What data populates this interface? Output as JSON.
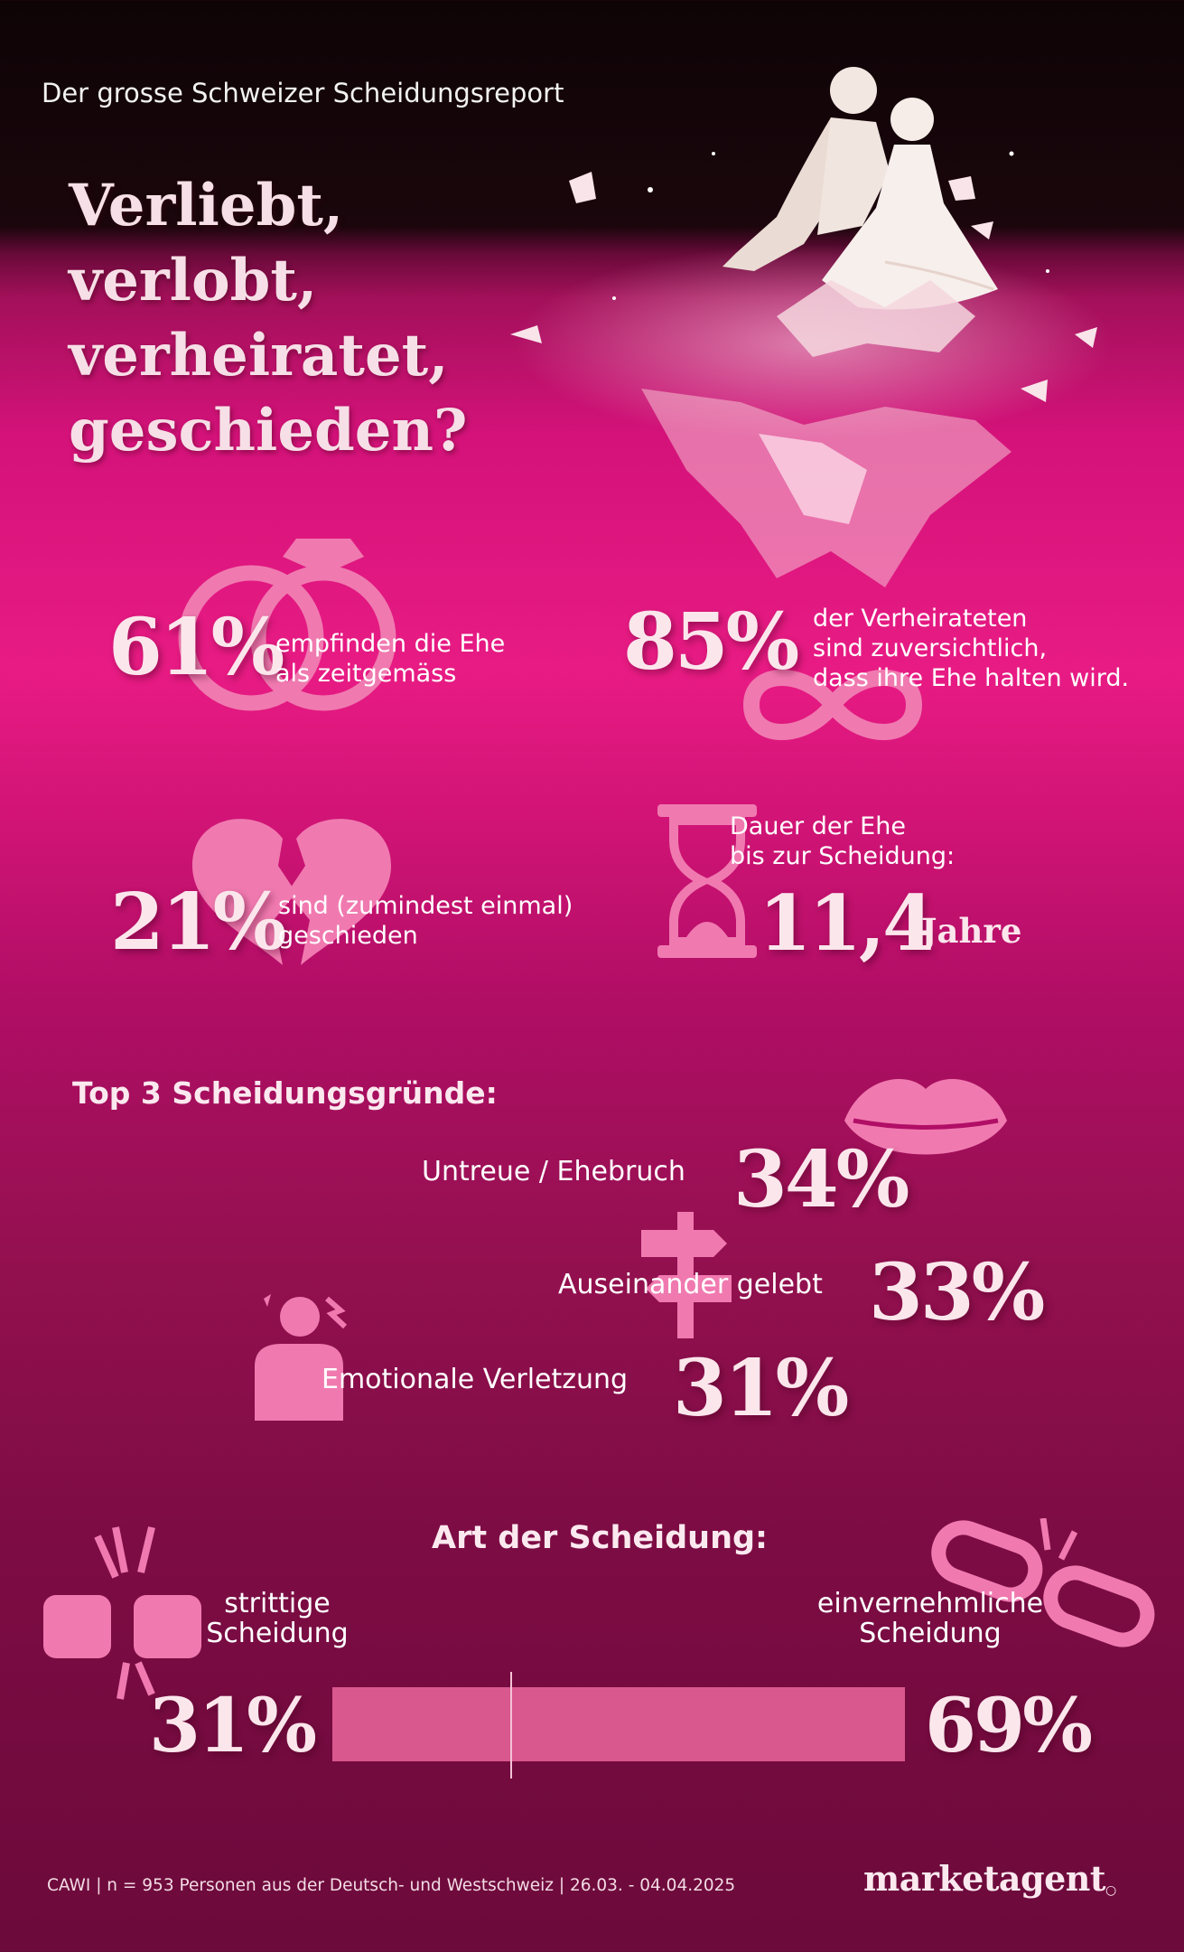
{
  "header": {
    "subtitle": "Der grosse Schweizer Scheidungsreport",
    "headline": [
      "Verliebt,",
      "verlobt,",
      "verheiratet,",
      "geschieden?"
    ]
  },
  "stats": {
    "zeitgemaess": {
      "value": "61%",
      "line1": "empfinden die Ehe",
      "line2": "als zeitgemäss",
      "icon": "wedding-rings-icon"
    },
    "zuversichtlich": {
      "value": "85%",
      "line1": "der Verheirateten",
      "line2": "sind zuversichtlich,",
      "line3": "dass ihre Ehe halten wird.",
      "icon": "infinity-icon"
    },
    "geschieden": {
      "value": "21%",
      "line1": "sind (zumindest einmal)",
      "line2": "geschieden",
      "icon": "broken-heart-icon"
    },
    "dauer": {
      "line1": "Dauer der Ehe",
      "line2": "bis zur Scheidung:",
      "value": "11,4",
      "unit": "Jahre",
      "icon": "hourglass-icon"
    }
  },
  "reasons": {
    "title": "Top 3 Scheidungsgründe:",
    "items": [
      {
        "label": "Untreue / Ehebruch",
        "value": "34%",
        "icon": "lips-icon"
      },
      {
        "label": "Auseinander gelebt",
        "value": "33%",
        "icon": "signpost-icon"
      },
      {
        "label": "Emotionale Verletzung",
        "value": "31%",
        "icon": "hurt-person-icon"
      }
    ]
  },
  "divorce_type": {
    "title": "Art der Scheidung:",
    "left": {
      "line1": "strittige",
      "line2": "Scheidung",
      "value": "31%",
      "share": 0.31,
      "icon": "fists-icon"
    },
    "right": {
      "line1": "einvernehmliche",
      "line2": "Scheidung",
      "value": "69%",
      "share": 0.69,
      "icon": "broken-chain-icon"
    }
  },
  "footer": {
    "source": "CAWI | n = 953 Personen aus der Deutsch- und Westschweiz | 26.03. - 04.04.2025",
    "logo": "marketagent"
  },
  "colors": {
    "accent": "#e81b84",
    "icon": "#f07ab0",
    "bar": "#d9588e",
    "dark": "#0e0406"
  }
}
